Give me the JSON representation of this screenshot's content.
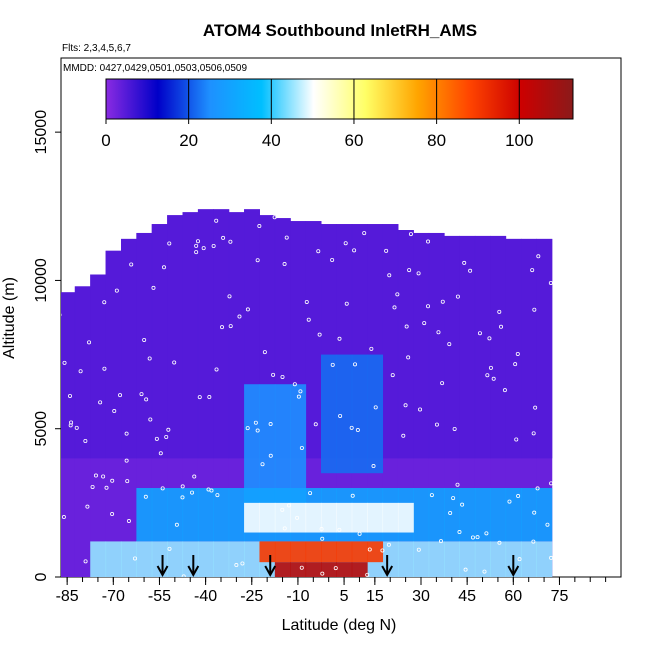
{
  "chart_data": {
    "type": "heatmap",
    "title": "ATOM4 Southbound InletRH_AMS",
    "flights_note": "Flts: 2,3,4,5,6,7",
    "dates_note": "MMDD: 0427,0429,0501,0503,0506,0509",
    "xlabel": "Latitude (deg N)",
    "ylabel": "Altitude (m)",
    "xlim": [
      -87,
      95
    ],
    "ylim": [
      0,
      17500
    ],
    "x_ticks": [
      -85,
      -70,
      -55,
      -40,
      -25,
      -10,
      5,
      15,
      30,
      45,
      60,
      75
    ],
    "x_tick_labels": [
      "-85",
      "-70",
      "-55",
      "-40",
      "-25",
      "-10",
      "5",
      "15",
      "30",
      "45",
      "60",
      "75"
    ],
    "y_ticks": [
      0,
      5000,
      10000,
      15000
    ],
    "y_tick_labels": [
      "0",
      "5000",
      "10000",
      "15000"
    ],
    "grid": false,
    "legend": "top colorbar",
    "colorbar": {
      "min": 0,
      "max": 113,
      "ticks": [
        0,
        20,
        40,
        60,
        80,
        100
      ],
      "tick_labels": [
        "0",
        "20",
        "40",
        "60",
        "80",
        "100"
      ],
      "colors": [
        "#8a2be2",
        "#0000c8",
        "#1e90ff",
        "#00bfff",
        "#ffffff",
        "#ffff66",
        "#ffa500",
        "#ff4500",
        "#cc0000",
        "#8b1a1a"
      ]
    },
    "arrows_latitude": [
      -54,
      -44,
      -19,
      19,
      60
    ],
    "column_tops_m": [
      [
        -85,
        9600
      ],
      [
        -80,
        9800
      ],
      [
        -75,
        10200
      ],
      [
        -70,
        11000
      ],
      [
        -65,
        11400
      ],
      [
        -60,
        11600
      ],
      [
        -55,
        11900
      ],
      [
        -50,
        12200
      ],
      [
        -45,
        12300
      ],
      [
        -40,
        12400
      ],
      [
        -35,
        12400
      ],
      [
        -30,
        12300
      ],
      [
        -25,
        12400
      ],
      [
        -20,
        12200
      ],
      [
        -15,
        12100
      ],
      [
        -10,
        12000
      ],
      [
        -5,
        12000
      ],
      [
        0,
        11900
      ],
      [
        5,
        11900
      ],
      [
        10,
        11900
      ],
      [
        15,
        11900
      ],
      [
        20,
        11900
      ],
      [
        25,
        11700
      ],
      [
        30,
        11600
      ],
      [
        35,
        11600
      ],
      [
        40,
        11500
      ],
      [
        45,
        11500
      ],
      [
        50,
        11500
      ],
      [
        55,
        11500
      ],
      [
        60,
        11400
      ],
      [
        65,
        11400
      ],
      [
        70,
        11400
      ]
    ],
    "humidity_field_summary": [
      {
        "lat_range": [
          -85,
          72
        ],
        "alt_range_m": [
          4000,
          12400
        ],
        "rh_percent": 5
      },
      {
        "lat_range": [
          -25,
          -10
        ],
        "alt_range_m": [
          2500,
          6500
        ],
        "rh_percent": 25
      },
      {
        "lat_range": [
          0,
          15
        ],
        "alt_range_m": [
          3500,
          7500
        ],
        "rh_percent": 22
      },
      {
        "lat_range": [
          -60,
          70
        ],
        "alt_range_m": [
          1200,
          3000
        ],
        "rh_percent": 30
      },
      {
        "lat_range": [
          -25,
          25
        ],
        "alt_range_m": [
          1500,
          2500
        ],
        "rh_percent": 50
      },
      {
        "lat_range": [
          -75,
          70
        ],
        "alt_range_m": [
          0,
          1200
        ],
        "rh_percent": 45
      },
      {
        "lat_range": [
          -20,
          15
        ],
        "alt_range_m": [
          500,
          1200
        ],
        "rh_percent": 90
      },
      {
        "lat_range": [
          -15,
          10
        ],
        "alt_range_m": [
          0,
          500
        ],
        "rh_percent": 105
      }
    ]
  }
}
